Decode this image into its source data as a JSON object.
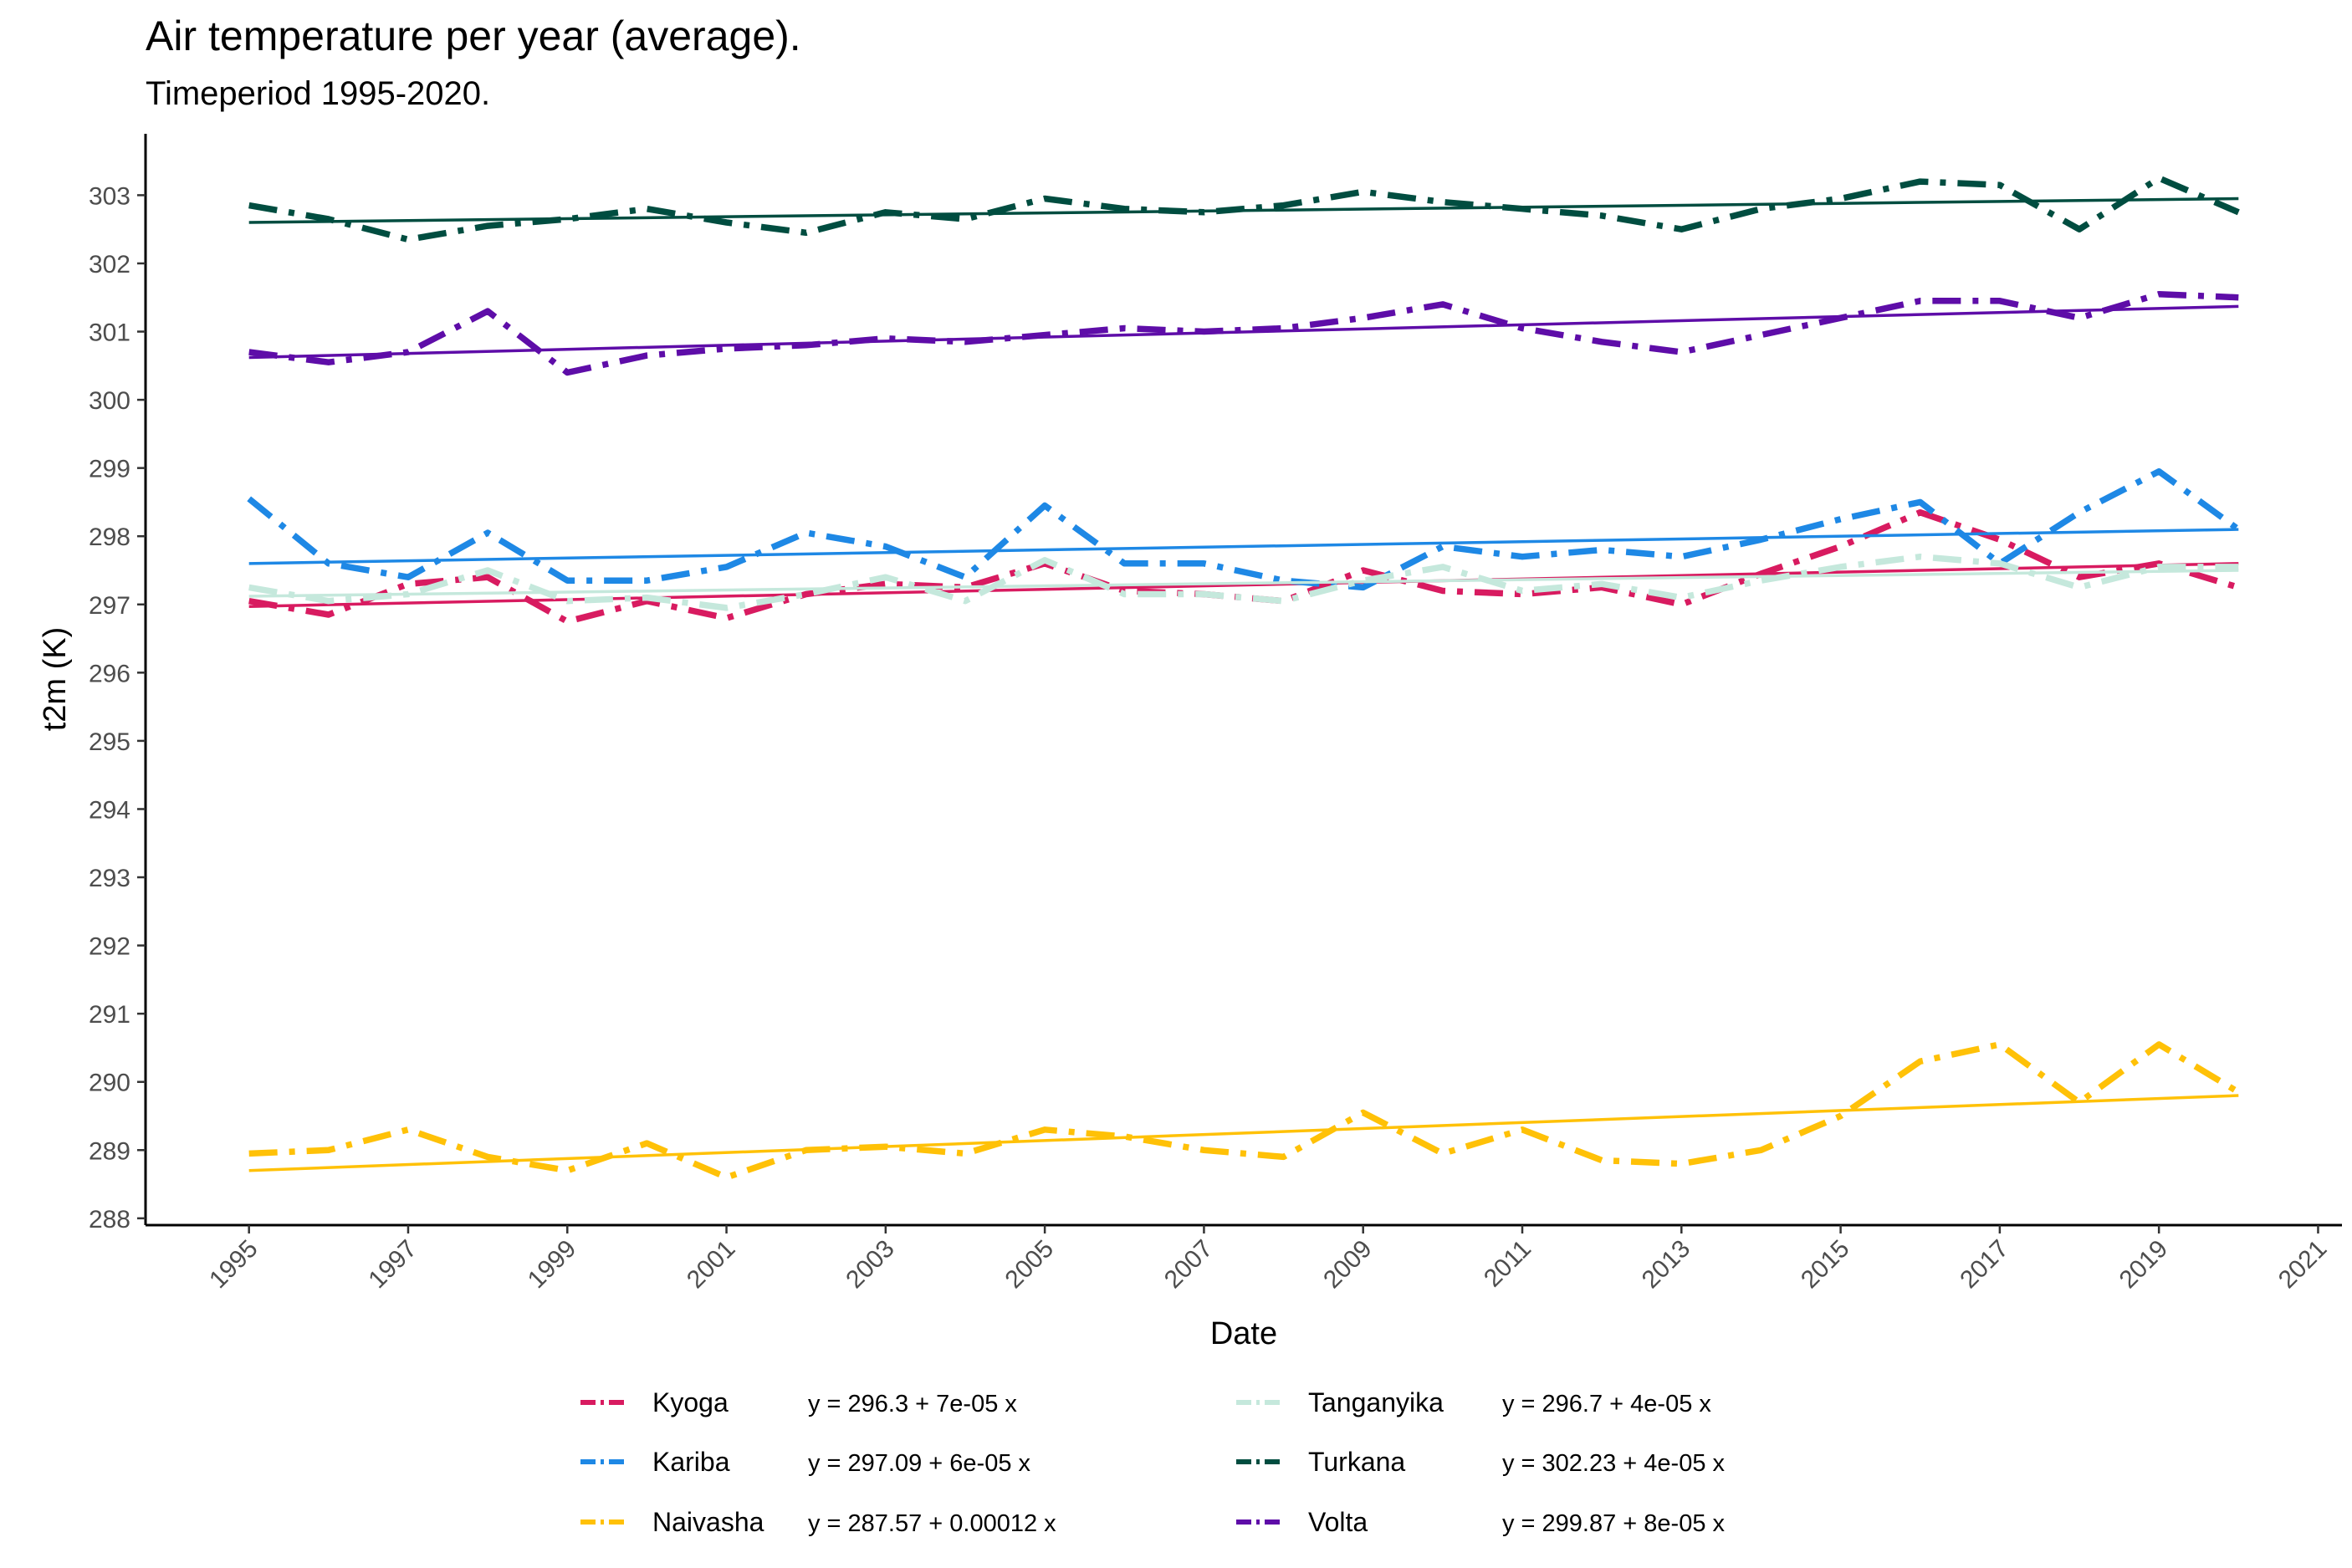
{
  "chart_data": {
    "type": "line",
    "title": "Air temperature per year (average).",
    "subtitle": "Timeperiod 1995-2020.",
    "xlabel": "Date",
    "ylabel": "t2m (K)",
    "xlim": [
      1993.7,
      2021.3
    ],
    "ylim": [
      287.9,
      303.9
    ],
    "xticks": [
      1995,
      1997,
      1999,
      2001,
      2003,
      2005,
      2007,
      2009,
      2011,
      2013,
      2015,
      2017,
      2019,
      2021
    ],
    "yticks": [
      288,
      289,
      290,
      291,
      292,
      293,
      294,
      295,
      296,
      297,
      298,
      299,
      300,
      301,
      302,
      303
    ],
    "x": [
      1995,
      1996,
      1997,
      1998,
      1999,
      2000,
      2001,
      2002,
      2003,
      2004,
      2005,
      2006,
      2007,
      2008,
      2009,
      2010,
      2011,
      2012,
      2013,
      2014,
      2015,
      2016,
      2017,
      2018,
      2019,
      2020
    ],
    "grid": false,
    "legend_position": "bottom",
    "series": [
      {
        "name": "Kyoga",
        "color": "#D81B60",
        "equation": "y = 296.3 + 7e-05 x",
        "values": [
          297.05,
          296.85,
          297.3,
          297.4,
          296.75,
          297.05,
          296.8,
          297.15,
          297.3,
          297.25,
          297.6,
          297.2,
          297.15,
          297.05,
          297.5,
          297.2,
          297.15,
          297.25,
          297.0,
          297.45,
          297.85,
          298.35,
          297.95,
          297.4,
          297.6,
          297.25
        ],
        "trend": [
          296.97,
          297.6
        ]
      },
      {
        "name": "Kariba",
        "color": "#1E88E5",
        "equation": "y = 297.09 + 6e-05 x",
        "values": [
          298.55,
          297.6,
          297.4,
          298.05,
          297.35,
          297.35,
          297.55,
          298.05,
          297.85,
          297.4,
          298.45,
          297.6,
          297.6,
          297.35,
          297.25,
          297.85,
          297.7,
          297.8,
          297.7,
          297.95,
          298.25,
          298.5,
          297.6,
          298.35,
          298.95,
          298.1
        ],
        "trend": [
          297.6,
          298.1
        ]
      },
      {
        "name": "Naivasha",
        "color": "#FFC107",
        "equation": "y = 287.57 + 0.00012 x",
        "values": [
          288.95,
          289.0,
          289.3,
          288.9,
          288.7,
          289.1,
          288.6,
          289.0,
          289.05,
          288.95,
          289.3,
          289.2,
          289.0,
          288.9,
          289.55,
          288.95,
          289.3,
          288.85,
          288.8,
          289.0,
          289.5,
          290.3,
          290.55,
          289.7,
          290.55,
          289.85
        ],
        "trend": [
          288.7,
          289.8
        ]
      },
      {
        "name": "Tanganyika",
        "color": "#C5E8DC",
        "equation": "y = 296.7 + 4e-05 x",
        "values": [
          297.25,
          297.05,
          297.15,
          297.5,
          297.05,
          297.1,
          296.95,
          297.15,
          297.4,
          297.05,
          297.65,
          297.15,
          297.15,
          297.05,
          297.35,
          297.55,
          297.2,
          297.3,
          297.1,
          297.35,
          297.55,
          297.7,
          297.6,
          297.25,
          297.55,
          297.55
        ],
        "trend": [
          297.12,
          297.5
        ]
      },
      {
        "name": "Turkana",
        "color": "#004D40",
        "equation": "y = 302.23 + 4e-05 x",
        "values": [
          302.85,
          302.65,
          302.35,
          302.55,
          302.65,
          302.8,
          302.6,
          302.45,
          302.75,
          302.65,
          302.95,
          302.8,
          302.75,
          302.85,
          303.05,
          302.9,
          302.8,
          302.7,
          302.5,
          302.8,
          302.95,
          303.2,
          303.15,
          302.5,
          303.25,
          302.75
        ],
        "trend": [
          302.6,
          302.95
        ]
      },
      {
        "name": "Volta",
        "color": "#5E0DA8",
        "equation": "y = 299.87 + 8e-05 x",
        "values": [
          300.7,
          300.55,
          300.7,
          301.3,
          300.4,
          300.65,
          300.75,
          300.8,
          300.9,
          300.85,
          300.95,
          301.05,
          301.0,
          301.05,
          301.2,
          301.4,
          301.05,
          300.85,
          300.7,
          300.95,
          301.2,
          301.45,
          301.45,
          301.2,
          301.55,
          301.5
        ],
        "trend": [
          300.62,
          301.37
        ]
      }
    ]
  }
}
